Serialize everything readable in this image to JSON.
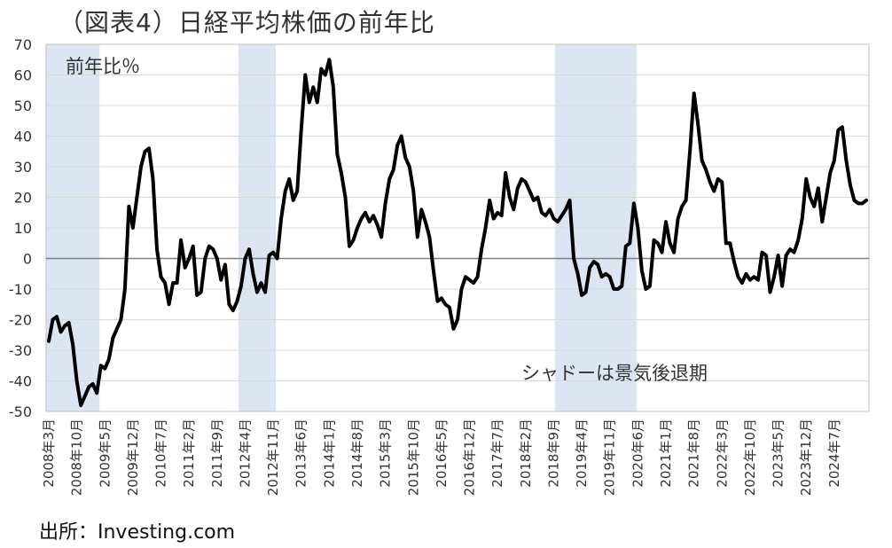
{
  "title": "（図表4）日経平均株価の前年比",
  "source": "出所：Investing.com",
  "colors": {
    "line": "#000000",
    "shade": "#dbe6f2",
    "grid": "#d9d9d9",
    "axis": "#808080"
  },
  "chart_data": {
    "type": "line",
    "title": "（図表4）日経平均株価の前年比",
    "ylabel": "",
    "xlabel": "",
    "ylim": [
      -50,
      70
    ],
    "yticks": [
      70,
      60,
      50,
      40,
      30,
      20,
      10,
      0,
      -10,
      -20,
      -30,
      -40,
      -50
    ],
    "grid": true,
    "series_label": "前年比％",
    "shade_label": "シャドーは景気後退期",
    "x_tick_labels": [
      "2008年3月",
      "2008年10月",
      "2009年5月",
      "2009年12月",
      "2010年7月",
      "2011年2月",
      "2011年9月",
      "2012年4月",
      "2012年11月",
      "2013年6月",
      "2014年1月",
      "2014年8月",
      "2015年3月",
      "2015年10月",
      "2016年5月",
      "2016年12月",
      "2017年7月",
      "2018年2月",
      "2018年9月",
      "2019年4月",
      "2019年11月",
      "2020年6月",
      "2021年1月",
      "2021年8月",
      "2022年3月",
      "2022年10月",
      "2023年5月",
      "2023年12月",
      "2024年7月"
    ],
    "recession_periods": [
      [
        "2008-03",
        "2009-03"
      ],
      [
        "2012-03",
        "2012-11"
      ],
      [
        "2018-10",
        "2020-05"
      ]
    ],
    "series": [
      {
        "start": "2008-03",
        "values": [
          -27,
          -20,
          -19,
          -24,
          -22,
          -21,
          -28,
          -40,
          -48,
          -45,
          -42,
          -41,
          -44,
          -35,
          -36,
          -33,
          -26,
          -23,
          -20,
          -10,
          17,
          10,
          20,
          30,
          35,
          36,
          26,
          3,
          -6,
          -8,
          -15,
          -8,
          -8,
          6,
          -3,
          0,
          4,
          -12,
          -11,
          0,
          4,
          3,
          0,
          -7,
          -2,
          -15,
          -17,
          -14,
          -9,
          0,
          3,
          -5,
          -11,
          -8,
          -11,
          1,
          2,
          0,
          13,
          22,
          26,
          19,
          22,
          42,
          60,
          51,
          56,
          51,
          62,
          60,
          65,
          56,
          34,
          28,
          20,
          4,
          6,
          10,
          13,
          15,
          12,
          14,
          11,
          7,
          18,
          26,
          29,
          37,
          40,
          33,
          30,
          22,
          7,
          16,
          12,
          7,
          -4,
          -14,
          -13,
          -15,
          -16,
          -23,
          -20,
          -10,
          -6,
          -7,
          -8,
          -6,
          3,
          10,
          19,
          13,
          15,
          14,
          28,
          20,
          16,
          23,
          26,
          25,
          22,
          19,
          20,
          15,
          14,
          16,
          13,
          12,
          14,
          16,
          19,
          0,
          -5,
          -12,
          -11,
          -3,
          -1,
          -2,
          -6,
          -5,
          -6,
          -10,
          -10,
          -9,
          4,
          5,
          18,
          10,
          -4,
          -10,
          -9,
          6,
          5,
          2,
          12,
          5,
          2,
          13,
          17,
          19,
          35,
          54,
          44,
          32,
          29,
          25,
          22,
          26,
          25,
          5,
          5,
          -1,
          -6,
          -8,
          -5,
          -7,
          -6,
          -7,
          2,
          1,
          -11,
          -6,
          1,
          -9,
          1,
          3,
          2,
          6,
          13,
          26,
          20,
          17,
          23,
          12,
          20,
          28,
          32,
          42,
          43,
          32,
          24,
          19,
          18,
          18,
          19
        ]
      }
    ]
  }
}
